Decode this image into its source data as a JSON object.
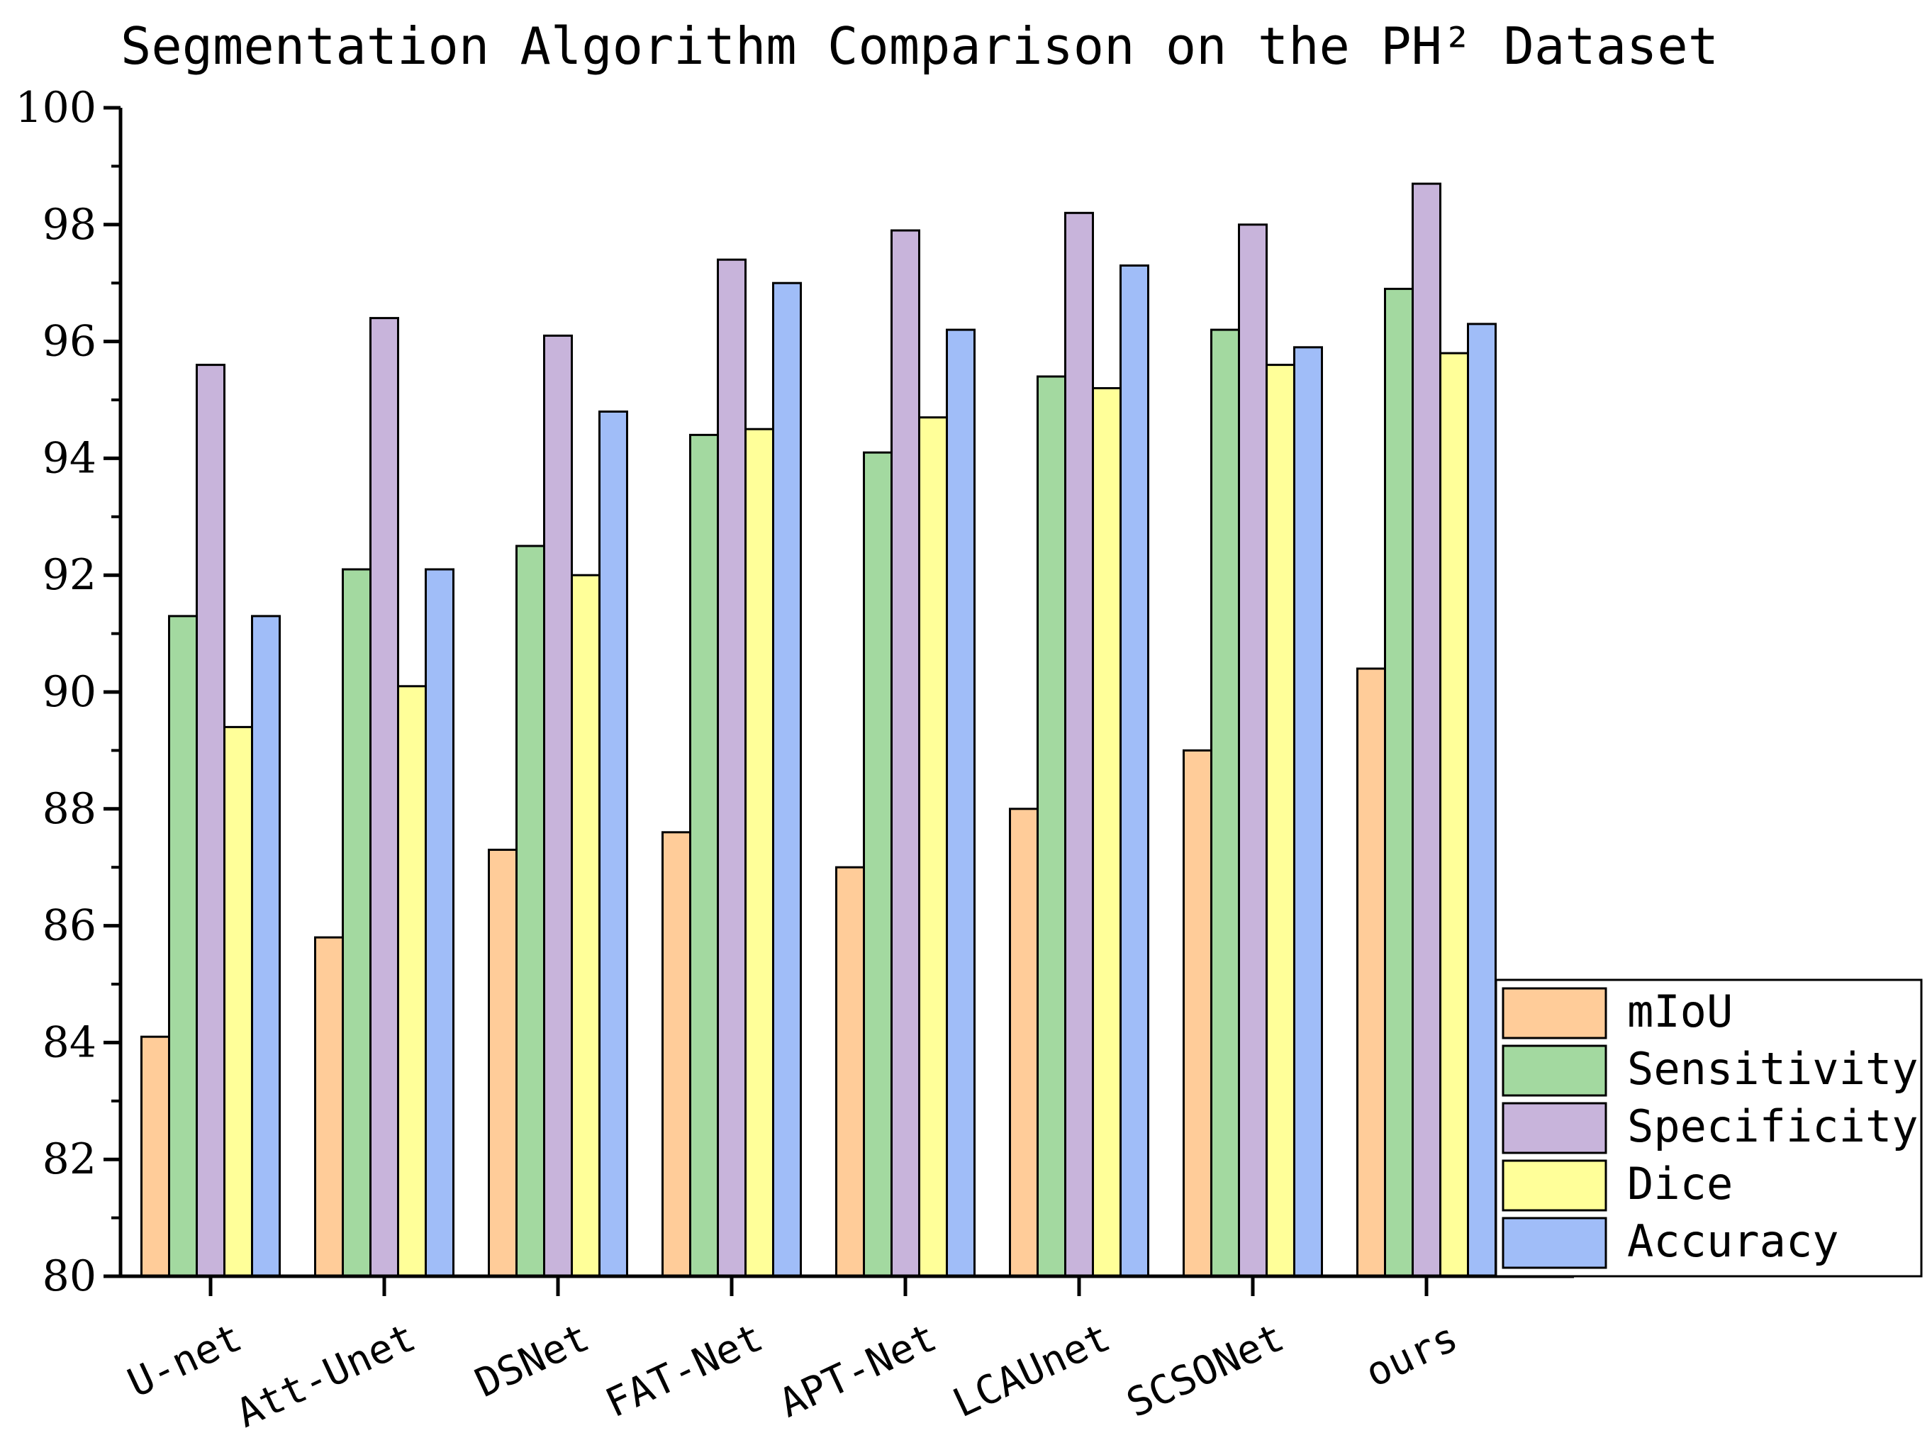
{
  "chart_data": {
    "type": "bar",
    "title": "Segmentation Algorithm Comparison on the PH² Dataset",
    "xlabel": "",
    "ylabel": "",
    "ylim": [
      80,
      100
    ],
    "yticks": [
      "80",
      "82",
      "84",
      "86",
      "88",
      "90",
      "92",
      "94",
      "96",
      "98",
      "100"
    ],
    "categories": [
      "U-net",
      "Att-Unet",
      "DSNet",
      "FAT-Net",
      "APT-Net",
      "LCAUnet",
      "SCSONet",
      "ours"
    ],
    "series": [
      {
        "name": "mIoU",
        "color": "#FFCC99",
        "values": [
          84.1,
          85.8,
          87.3,
          87.6,
          87.0,
          88.0,
          89.0,
          90.4
        ]
      },
      {
        "name": "Sensitivity",
        "color": "#A3D9A0",
        "values": [
          91.3,
          92.1,
          92.5,
          94.4,
          94.1,
          95.4,
          96.2,
          96.9
        ]
      },
      {
        "name": "Specificity",
        "color": "#C8B4DB",
        "values": [
          95.6,
          96.4,
          96.1,
          97.4,
          97.9,
          98.2,
          98.0,
          98.7
        ]
      },
      {
        "name": "Dice",
        "color": "#FFFF99",
        "values": [
          89.4,
          90.1,
          92.0,
          94.5,
          94.7,
          95.2,
          95.6,
          95.8
        ]
      },
      {
        "name": "Accuracy",
        "color": "#A0BDF8",
        "values": [
          91.3,
          92.1,
          94.8,
          97.0,
          96.2,
          97.3,
          95.9,
          96.3
        ]
      }
    ],
    "grid": false,
    "legend_position": "bottom-right"
  }
}
